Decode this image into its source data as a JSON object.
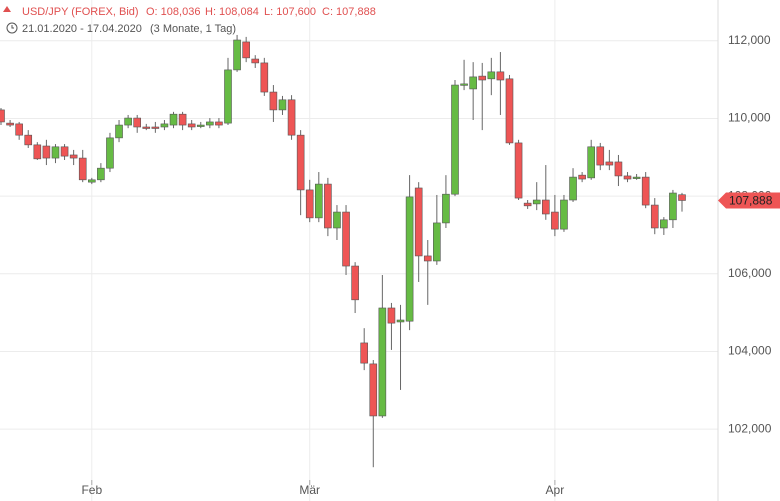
{
  "chart_data": {
    "type": "candlestick",
    "instrument": "USD/JPY (FOREX, Bid)",
    "ohlc_labels": [
      "O: 108,036",
      "H: 108,084",
      "L: 107,600",
      "C: 107,888"
    ],
    "period": "21.01.2020 - 17.04.2020",
    "period_note": "(3 Monate, 1 Tag)",
    "last_label": "107,888",
    "up_color": "#66bb44",
    "down_color": "#ee5555",
    "ylim": [
      100.15,
      113.05
    ],
    "yticks": [
      {
        "value": 102,
        "label": "102,000"
      },
      {
        "value": 104,
        "label": "104,000"
      },
      {
        "value": 106,
        "label": "106,000"
      },
      {
        "value": 108,
        "label": "108,000"
      },
      {
        "value": 110,
        "label": "110,000"
      },
      {
        "value": 112,
        "label": "112,000"
      }
    ],
    "grid": true,
    "categories": [
      null,
      null,
      null,
      null,
      null,
      null,
      null,
      null,
      null,
      null,
      "Feb",
      null,
      null,
      null,
      null,
      null,
      null,
      null,
      null,
      null,
      null,
      null,
      null,
      null,
      null,
      null,
      null,
      null,
      null,
      null,
      null,
      null,
      null,
      null,
      "Mär",
      null,
      null,
      null,
      null,
      null,
      null,
      null,
      null,
      null,
      null,
      null,
      null,
      null,
      null,
      null,
      null,
      null,
      null,
      null,
      null,
      null,
      null,
      null,
      null,
      null,
      null,
      "Apr",
      null,
      null,
      null,
      null,
      null,
      null,
      null,
      null,
      null,
      null,
      null,
      null,
      null,
      null
    ],
    "open": [
      110.22,
      109.88,
      109.86,
      109.57,
      109.32,
      109.29,
      108.98,
      109.27,
      109.06,
      108.98,
      108.36,
      108.42,
      108.72,
      109.5,
      109.83,
      110.01,
      109.78,
      109.78,
      109.78,
      109.83,
      110.11,
      109.86,
      109.81,
      109.83,
      109.91,
      109.88,
      111.25,
      111.97,
      111.53,
      111.43,
      110.68,
      110.22,
      110.48,
      109.57,
      108.16,
      107.44,
      108.31,
      107.18,
      107.59,
      106.2,
      104.22,
      103.68,
      102.34,
      105.12,
      104.76,
      104.78,
      108.21,
      106.46,
      106.33,
      107.31,
      108.05,
      110.86,
      110.76,
      111.09,
      111.02,
      111.2,
      111.02,
      109.37,
      107.82,
      107.8,
      107.9,
      107.59,
      107.15,
      107.9,
      108.54,
      108.47,
      109.27,
      108.88,
      108.88,
      108.52,
      108.47,
      108.49,
      107.77,
      107.18,
      107.39,
      108.036
    ],
    "high": [
      110.27,
      109.96,
      109.91,
      109.7,
      109.39,
      109.45,
      109.34,
      109.34,
      109.19,
      109.19,
      108.47,
      108.85,
      109.63,
      109.96,
      110.09,
      110.09,
      109.86,
      109.91,
      109.96,
      110.17,
      110.17,
      109.96,
      109.91,
      110.01,
      110.01,
      111.56,
      112.15,
      112.1,
      111.63,
      111.56,
      110.86,
      110.58,
      110.6,
      109.7,
      108.42,
      108.62,
      108.47,
      107.77,
      107.77,
      106.3,
      104.6,
      103.78,
      105.97,
      105.25,
      105.2,
      108.54,
      108.36,
      106.87,
      108.03,
      108.54,
      110.99,
      111.51,
      111.45,
      111.43,
      111.56,
      111.71,
      111.12,
      109.45,
      107.9,
      108.36,
      108.8,
      108.03,
      108.03,
      108.72,
      108.62,
      109.45,
      109.37,
      109.19,
      109.06,
      108.62,
      108.57,
      108.62,
      107.95,
      107.46,
      108.16,
      108.084
    ],
    "low": [
      109.83,
      109.78,
      109.45,
      109.24,
      108.93,
      108.8,
      108.85,
      108.93,
      108.8,
      108.36,
      108.31,
      108.36,
      108.62,
      109.39,
      109.75,
      109.63,
      109.7,
      109.63,
      109.7,
      109.75,
      109.7,
      109.7,
      109.75,
      109.75,
      109.75,
      109.83,
      111.2,
      111.45,
      111.3,
      110.58,
      109.91,
      110.09,
      109.45,
      107.51,
      107.33,
      107.33,
      106.97,
      106.87,
      105.97,
      104.99,
      103.52,
      101.02,
      102.29,
      104.04,
      103.01,
      104.55,
      105.79,
      105.2,
      106.23,
      107.18,
      108.0,
      110.73,
      109.96,
      109.7,
      110.6,
      110.09,
      109.32,
      107.9,
      107.67,
      107.64,
      107.39,
      106.97,
      107.08,
      107.85,
      108.36,
      108.42,
      108.67,
      108.67,
      108.26,
      108.36,
      108.42,
      107.69,
      107.02,
      107.0,
      107.18,
      107.6
    ],
    "close": [
      109.91,
      109.83,
      109.57,
      109.32,
      108.96,
      108.98,
      109.27,
      109.03,
      108.98,
      108.42,
      108.42,
      108.72,
      109.5,
      109.83,
      110.01,
      109.78,
      109.75,
      109.75,
      109.86,
      110.11,
      109.83,
      109.78,
      109.83,
      109.91,
      109.83,
      111.25,
      112.02,
      111.56,
      111.43,
      110.68,
      110.22,
      110.48,
      109.57,
      108.16,
      107.44,
      108.31,
      107.18,
      107.59,
      106.2,
      105.33,
      103.7,
      102.34,
      105.12,
      104.73,
      104.81,
      107.98,
      106.46,
      106.33,
      107.31,
      108.05,
      110.86,
      110.89,
      111.07,
      110.99,
      111.2,
      110.99,
      109.37,
      107.95,
      107.75,
      107.9,
      107.54,
      107.15,
      107.9,
      108.49,
      108.44,
      109.27,
      108.8,
      108.8,
      108.52,
      108.44,
      108.49,
      107.77,
      107.18,
      107.39,
      108.08,
      107.888
    ]
  }
}
